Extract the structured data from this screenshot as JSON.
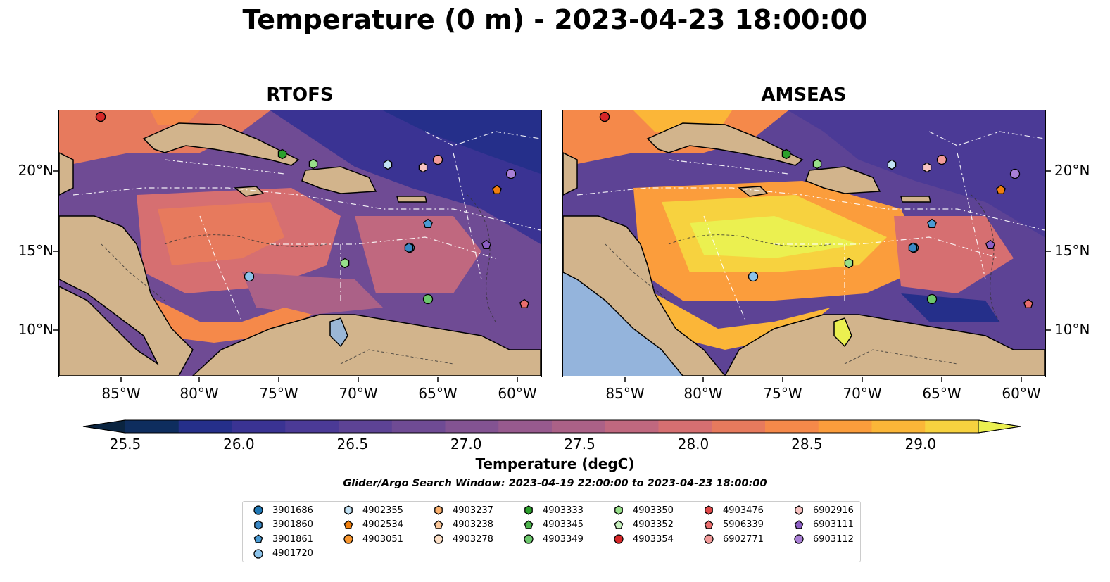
{
  "figure": {
    "title": "Temperature (0 m) - 2023-04-23 18:00:00",
    "panels": [
      {
        "title": "RTOFS"
      },
      {
        "title": "AMSEAS"
      }
    ],
    "lon_ticks": [
      "85°W",
      "80°W",
      "75°W",
      "70°W",
      "65°W",
      "60°W"
    ],
    "lat_ticks": [
      "20°N",
      "15°N",
      "10°N"
    ],
    "colorbar": {
      "label": "Temperature (degC)",
      "ticks": [
        "25.5",
        "26.0",
        "26.5",
        "27.0",
        "27.5",
        "28.0",
        "28.5",
        "29.0"
      ],
      "colors": [
        "#0a2440",
        "#0e2d5e",
        "#252f8a",
        "#3a3393",
        "#4b3a96",
        "#5d4395",
        "#6f4b94",
        "#835392",
        "#975a8e",
        "#ab6187",
        "#c0687f",
        "#d66f71",
        "#e77a5d",
        "#f5894a",
        "#fb9d3c",
        "#fbb638",
        "#f7d23f",
        "#ebf050"
      ],
      "extend": "both"
    },
    "search_window": "Glider/Argo Search Window: 2023-04-19 22:00:00 to 2023-04-23 18:00:00",
    "legend": [
      {
        "label": "3901686",
        "marker": "circle",
        "color": "#1f77b4"
      },
      {
        "label": "3901860",
        "marker": "hexagon",
        "color": "#3a87c4"
      },
      {
        "label": "3901861",
        "marker": "pentagon",
        "color": "#4a9ad2"
      },
      {
        "label": "4901720",
        "marker": "circle",
        "color": "#8cc3ea"
      },
      {
        "label": "4902355",
        "marker": "hexagon",
        "color": "#c2e2f5"
      },
      {
        "label": "4902534",
        "marker": "pentagon",
        "color": "#f07f0e"
      },
      {
        "label": "4903051",
        "marker": "circle",
        "color": "#f9962e"
      },
      {
        "label": "4903237",
        "marker": "hexagon",
        "color": "#fbb06e"
      },
      {
        "label": "4903238",
        "marker": "pentagon",
        "color": "#fcc89a"
      },
      {
        "label": "4903278",
        "marker": "circle",
        "color": "#fde0c7"
      },
      {
        "label": "4903333",
        "marker": "hexagon",
        "color": "#2ca02c"
      },
      {
        "label": "4903345",
        "marker": "pentagon",
        "color": "#4db34d"
      },
      {
        "label": "4903349",
        "marker": "circle",
        "color": "#6cc86c"
      },
      {
        "label": "4903350",
        "marker": "hexagon",
        "color": "#98df8a"
      },
      {
        "label": "4903352",
        "marker": "pentagon",
        "color": "#c6efbd"
      },
      {
        "label": "4903354",
        "marker": "circle",
        "color": "#d62728"
      },
      {
        "label": "4903476",
        "marker": "hexagon",
        "color": "#e0494a"
      },
      {
        "label": "5906339",
        "marker": "pentagon",
        "color": "#ea6e6e"
      },
      {
        "label": "6902771",
        "marker": "circle",
        "color": "#f29a99"
      },
      {
        "label": "6902916",
        "marker": "hexagon",
        "color": "#f8c3c2"
      },
      {
        "label": "6903111",
        "marker": "pentagon",
        "color": "#8c5fc4"
      },
      {
        "label": "6903112",
        "marker": "circle",
        "color": "#a97fd6"
      }
    ]
  }
}
